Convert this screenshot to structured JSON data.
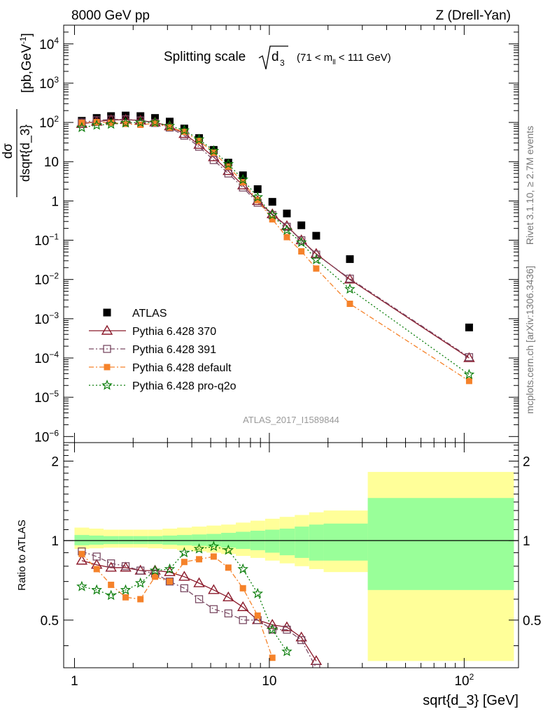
{
  "header": {
    "left": "8000 GeV pp",
    "right": "Z (Drell-Yan)"
  },
  "side_labels": {
    "rivet": "Rivet 3.1.10, ≥ 2.7M events",
    "mcplots": "mcplots.cern.ch [arXiv:1306.3436]"
  },
  "watermark": "ATLAS_2017_I1589844",
  "colors": {
    "atlas": "#000000",
    "p370": "#8b1a2b",
    "p391": "#7a4a63",
    "pdefault": "#f5822a",
    "pq2o": "#0a7d0a",
    "band_outer": "#ffff99",
    "band_inner": "#99ff99"
  },
  "chart_data": [
    {
      "type": "scatter",
      "title": "Splitting scale",
      "title_symbol": "d",
      "title_subscript": "3",
      "title_range_pre": "(71 < m",
      "title_range_sub": "ll",
      "title_range_post": " < 111 GeV)",
      "ylabel_num": "dσ",
      "ylabel_den": "dsqrt{d_3}",
      "ylabel_units": "[pb,GeV",
      "ylabel_units_sup": "-1",
      "ylabel_units_close": "]",
      "xscale": "log",
      "yscale": "log",
      "xlim": [
        0.88,
        190
      ],
      "ylim": [
        7e-07,
        30000.0
      ],
      "ytick_labels": [
        {
          "base": "10",
          "exp": "4",
          "value": 10000
        },
        {
          "base": "10",
          "exp": "3",
          "value": 1000
        },
        {
          "base": "10",
          "exp": "2",
          "value": 100
        },
        {
          "base": "10",
          "exp": "",
          "value": 10
        },
        {
          "base": "1",
          "exp": "",
          "value": 1
        },
        {
          "base": "10",
          "exp": "−1",
          "value": 0.1
        },
        {
          "base": "10",
          "exp": "−2",
          "value": 0.01
        },
        {
          "base": "10",
          "exp": "−3",
          "value": 0.001
        },
        {
          "base": "10",
          "exp": "−4",
          "value": 0.0001
        },
        {
          "base": "10",
          "exp": "−5",
          "value": 1e-05
        },
        {
          "base": "10",
          "exp": "−6",
          "value": 1e-06
        }
      ],
      "legend_position": "lower-left",
      "x": [
        1.09,
        1.3,
        1.54,
        1.83,
        2.18,
        2.59,
        3.08,
        3.66,
        4.36,
        5.18,
        6.16,
        7.32,
        8.71,
        10.36,
        12.3,
        14.6,
        17.4,
        25.9,
        106
      ],
      "series": [
        {
          "name": "ATLAS",
          "marker": "square",
          "line": "none",
          "color_key": "atlas",
          "values": [
            110,
            130,
            145,
            150,
            145,
            130,
            105,
            70,
            40,
            20,
            9.5,
            4.5,
            2.0,
            0.95,
            0.48,
            0.24,
            0.13,
            0.033,
            0.0006
          ]
        },
        {
          "name": "Pythia 6.428 370",
          "marker": "triangle-open",
          "line": "solid",
          "color_key": "p370",
          "values": [
            92,
            105,
            115,
            118,
            112,
            100,
            80,
            51,
            27,
            13,
            5.8,
            2.5,
            1.0,
            0.46,
            0.23,
            0.1,
            0.045,
            0.01,
            0.0001
          ]
        },
        {
          "name": "Pythia 6.428 391",
          "marker": "square-open",
          "line": "dashdot",
          "color_key": "p391",
          "values": [
            100,
            113,
            119,
            120,
            112,
            97,
            74,
            46,
            24,
            11,
            5.0,
            2.2,
            0.9,
            0.44,
            0.22,
            0.1,
            0.043,
            0.0105,
            0.000105
          ]
        },
        {
          "name": "Pythia 6.428 default",
          "marker": "square-filled",
          "line": "dashdot",
          "color_key": "pdefault",
          "values": [
            98,
            102,
            98,
            92,
            87,
            95,
            74,
            58,
            34,
            17,
            7.5,
            3.0,
            1.05,
            0.34,
            0.12,
            0.052,
            0.019,
            0.0024,
            2.6e-05
          ]
        },
        {
          "name": "Pythia 6.428 pro-q2o",
          "marker": "star",
          "line": "dotted",
          "color_key": "pq2o",
          "values": [
            74,
            85,
            90,
            97,
            100,
            100,
            82,
            63,
            37,
            19,
            8.7,
            3.5,
            1.25,
            0.44,
            0.18,
            0.088,
            0.032,
            0.0057,
            3.8e-05
          ]
        }
      ]
    },
    {
      "type": "scatter",
      "ylabel": "Ratio to ATLAS",
      "xlabel": "sqrt{d_3} [GeV]",
      "xscale": "log",
      "xlim": [
        0.88,
        190
      ],
      "ylim": [
        0.33,
        2.35
      ],
      "ytick_labels": [
        "2",
        "1",
        "0.5"
      ],
      "xtick_labels": [
        {
          "base": "1",
          "exp": "",
          "value": 1
        },
        {
          "base": "10",
          "exp": "",
          "value": 10
        },
        {
          "base": "10",
          "exp": "2",
          "value": 100
        }
      ],
      "band_edges": [
        1.0,
        1.19,
        1.41,
        1.68,
        2.0,
        2.38,
        2.83,
        3.36,
        4.0,
        4.76,
        5.66,
        6.73,
        8.0,
        9.51,
        11.3,
        13.5,
        16.0,
        19.0,
        32.0,
        180
      ],
      "band_inner": [
        [
          0.96,
          1.05
        ],
        [
          0.965,
          1.045
        ],
        [
          0.97,
          1.04
        ],
        [
          0.97,
          1.04
        ],
        [
          0.97,
          1.04
        ],
        [
          0.97,
          1.04
        ],
        [
          0.965,
          1.045
        ],
        [
          0.96,
          1.05
        ],
        [
          0.955,
          1.055
        ],
        [
          0.95,
          1.06
        ],
        [
          0.94,
          1.07
        ],
        [
          0.93,
          1.08
        ],
        [
          0.92,
          1.09
        ],
        [
          0.9,
          1.1
        ],
        [
          0.88,
          1.11
        ],
        [
          0.86,
          1.13
        ],
        [
          0.84,
          1.15
        ],
        [
          0.84,
          1.16
        ],
        [
          0.65,
          1.45
        ]
      ],
      "band_outer": [
        [
          0.93,
          1.12
        ],
        [
          0.935,
          1.11
        ],
        [
          0.94,
          1.1
        ],
        [
          0.94,
          1.1
        ],
        [
          0.94,
          1.1
        ],
        [
          0.935,
          1.1
        ],
        [
          0.93,
          1.11
        ],
        [
          0.92,
          1.12
        ],
        [
          0.91,
          1.13
        ],
        [
          0.9,
          1.14
        ],
        [
          0.89,
          1.15
        ],
        [
          0.875,
          1.17
        ],
        [
          0.86,
          1.19
        ],
        [
          0.84,
          1.21
        ],
        [
          0.82,
          1.23
        ],
        [
          0.8,
          1.25
        ],
        [
          0.78,
          1.28
        ],
        [
          0.76,
          1.3
        ],
        [
          0.35,
          1.82
        ]
      ],
      "series": [
        {
          "name": "Pythia 6.428 370",
          "color_key": "p370",
          "marker": "triangle-open",
          "line": "solid",
          "values": [
            0.84,
            0.81,
            0.79,
            0.79,
            0.77,
            0.77,
            0.76,
            0.73,
            0.69,
            0.65,
            0.61,
            0.56,
            0.5,
            0.48,
            0.47,
            0.43,
            0.35
          ]
        },
        {
          "name": "Pythia 6.428 391",
          "color_key": "p391",
          "marker": "square-open",
          "line": "dashdot",
          "values": [
            0.91,
            0.87,
            0.82,
            0.8,
            0.77,
            0.75,
            0.7,
            0.66,
            0.6,
            0.55,
            0.53,
            0.5,
            0.5,
            0.46,
            0.46,
            0.42,
            0.33
          ]
        },
        {
          "name": "Pythia 6.428 default",
          "color_key": "pdefault",
          "marker": "square-filled",
          "line": "dashdot",
          "values": [
            0.89,
            0.78,
            0.68,
            0.61,
            0.6,
            0.73,
            0.7,
            0.83,
            0.85,
            0.87,
            0.79,
            0.66,
            0.52,
            0.36
          ]
        },
        {
          "name": "Pythia 6.428 pro-q2o",
          "color_key": "pq2o",
          "marker": "star",
          "line": "dotted",
          "values": [
            0.67,
            0.65,
            0.62,
            0.65,
            0.69,
            0.77,
            0.78,
            0.9,
            0.93,
            0.95,
            0.92,
            0.78,
            0.63,
            0.46,
            0.38
          ]
        }
      ]
    }
  ]
}
